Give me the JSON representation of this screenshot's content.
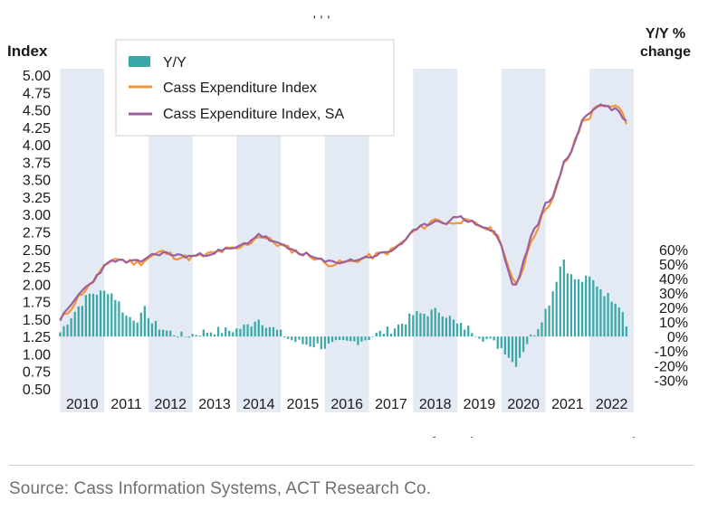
{
  "chart_data": {
    "type": "bar+line",
    "title_fragment": ", , ,",
    "left_axis": {
      "label": "Index",
      "ticks": [
        "5.00",
        "4.75",
        "4.50",
        "4.25",
        "4.00",
        "3.75",
        "3.50",
        "3.25",
        "3.00",
        "2.75",
        "2.50",
        "2.25",
        "2.00",
        "1.75",
        "1.50",
        "1.25",
        "1.00",
        "0.75",
        "0.50"
      ],
      "range": [
        0.5,
        5.0
      ]
    },
    "right_axis": {
      "label_line1": "Y/Y %",
      "label_line2": "change",
      "ticks": [
        "60%",
        "50%",
        "40%",
        "30%",
        "20%",
        "10%",
        "0%",
        "-10%",
        "-20%",
        "-30%"
      ],
      "range": [
        -30,
        60
      ]
    },
    "years": [
      "2010",
      "2011",
      "2012",
      "2013",
      "2014",
      "2015",
      "2016",
      "2017",
      "2018",
      "2019",
      "2020",
      "2021",
      "2022"
    ],
    "x_range": [
      2009.95,
      2023.0
    ],
    "shaded_years": [
      "2010",
      "2012",
      "2014",
      "2016",
      "2018",
      "2020",
      "2022"
    ],
    "legend": [
      "Y/Y",
      "Cass Expenditure Index",
      "Cass Expenditure Index, SA"
    ],
    "colors": {
      "yy": "#3aa8a6",
      "index": "#f2963a",
      "sa": "#9b5f9e",
      "shade": "#e3eaf4",
      "text": "#1a1a1a"
    },
    "index_keypoints": [
      [
        2010.0,
        1.48
      ],
      [
        2010.2,
        1.62
      ],
      [
        2010.45,
        1.85
      ],
      [
        2010.7,
        2.0
      ],
      [
        2010.95,
        2.2
      ],
      [
        2011.2,
        2.38
      ],
      [
        2011.5,
        2.33
      ],
      [
        2011.8,
        2.3
      ],
      [
        2012.0,
        2.38
      ],
      [
        2012.3,
        2.47
      ],
      [
        2012.6,
        2.4
      ],
      [
        2012.9,
        2.38
      ],
      [
        2013.2,
        2.4
      ],
      [
        2013.5,
        2.45
      ],
      [
        2013.8,
        2.5
      ],
      [
        2014.0,
        2.5
      ],
      [
        2014.3,
        2.6
      ],
      [
        2014.5,
        2.7
      ],
      [
        2014.8,
        2.62
      ],
      [
        2015.0,
        2.55
      ],
      [
        2015.3,
        2.48
      ],
      [
        2015.6,
        2.42
      ],
      [
        2015.8,
        2.38
      ],
      [
        2016.0,
        2.3
      ],
      [
        2016.3,
        2.3
      ],
      [
        2016.6,
        2.32
      ],
      [
        2016.9,
        2.38
      ],
      [
        2017.2,
        2.42
      ],
      [
        2017.5,
        2.48
      ],
      [
        2017.8,
        2.62
      ],
      [
        2018.0,
        2.75
      ],
      [
        2018.3,
        2.85
      ],
      [
        2018.55,
        2.95
      ],
      [
        2018.8,
        2.85
      ],
      [
        2019.0,
        2.92
      ],
      [
        2019.3,
        2.88
      ],
      [
        2019.6,
        2.82
      ],
      [
        2019.85,
        2.75
      ],
      [
        2020.0,
        2.6
      ],
      [
        2020.15,
        2.25
      ],
      [
        2020.3,
        1.95
      ],
      [
        2020.45,
        2.15
      ],
      [
        2020.65,
        2.6
      ],
      [
        2020.85,
        2.85
      ],
      [
        2021.0,
        3.1
      ],
      [
        2021.2,
        3.25
      ],
      [
        2021.4,
        3.7
      ],
      [
        2021.55,
        3.85
      ],
      [
        2021.7,
        4.1
      ],
      [
        2021.85,
        4.35
      ],
      [
        2022.0,
        4.4
      ],
      [
        2022.15,
        4.55
      ],
      [
        2022.3,
        4.6
      ],
      [
        2022.45,
        4.5
      ],
      [
        2022.6,
        4.55
      ],
      [
        2022.75,
        4.45
      ],
      [
        2022.88,
        4.25
      ]
    ],
    "sa_keypoints": [
      [
        2010.0,
        1.5
      ],
      [
        2010.2,
        1.65
      ],
      [
        2010.45,
        1.88
      ],
      [
        2010.7,
        2.02
      ],
      [
        2010.95,
        2.22
      ],
      [
        2011.2,
        2.35
      ],
      [
        2011.5,
        2.32
      ],
      [
        2011.8,
        2.32
      ],
      [
        2012.0,
        2.4
      ],
      [
        2012.3,
        2.45
      ],
      [
        2012.6,
        2.42
      ],
      [
        2012.9,
        2.4
      ],
      [
        2013.2,
        2.42
      ],
      [
        2013.5,
        2.46
      ],
      [
        2013.8,
        2.5
      ],
      [
        2014.0,
        2.52
      ],
      [
        2014.3,
        2.62
      ],
      [
        2014.5,
        2.72
      ],
      [
        2014.8,
        2.62
      ],
      [
        2015.0,
        2.56
      ],
      [
        2015.3,
        2.48
      ],
      [
        2015.6,
        2.42
      ],
      [
        2015.8,
        2.37
      ],
      [
        2016.0,
        2.32
      ],
      [
        2016.3,
        2.32
      ],
      [
        2016.6,
        2.34
      ],
      [
        2016.9,
        2.38
      ],
      [
        2017.2,
        2.42
      ],
      [
        2017.5,
        2.48
      ],
      [
        2017.8,
        2.62
      ],
      [
        2018.0,
        2.75
      ],
      [
        2018.3,
        2.86
      ],
      [
        2018.55,
        2.92
      ],
      [
        2018.8,
        2.88
      ],
      [
        2019.0,
        2.98
      ],
      [
        2019.3,
        2.9
      ],
      [
        2019.6,
        2.82
      ],
      [
        2019.85,
        2.74
      ],
      [
        2020.0,
        2.55
      ],
      [
        2020.15,
        2.2
      ],
      [
        2020.3,
        1.92
      ],
      [
        2020.45,
        2.2
      ],
      [
        2020.65,
        2.65
      ],
      [
        2020.85,
        2.9
      ],
      [
        2021.0,
        3.15
      ],
      [
        2021.2,
        3.3
      ],
      [
        2021.4,
        3.72
      ],
      [
        2021.55,
        3.85
      ],
      [
        2021.7,
        4.12
      ],
      [
        2021.85,
        4.38
      ],
      [
        2022.0,
        4.45
      ],
      [
        2022.15,
        4.55
      ],
      [
        2022.3,
        4.58
      ],
      [
        2022.45,
        4.52
      ],
      [
        2022.6,
        4.52
      ],
      [
        2022.75,
        4.4
      ],
      [
        2022.88,
        4.28
      ]
    ],
    "yy_keypoints": [
      [
        2010.0,
        3
      ],
      [
        2010.2,
        12
      ],
      [
        2010.45,
        22
      ],
      [
        2010.7,
        30
      ],
      [
        2010.95,
        30
      ],
      [
        2011.1,
        32
      ],
      [
        2011.3,
        25
      ],
      [
        2011.5,
        14
      ],
      [
        2011.8,
        12
      ],
      [
        2011.95,
        20
      ],
      [
        2012.05,
        10
      ],
      [
        2012.4,
        4
      ],
      [
        2012.8,
        0
      ],
      [
        2013.2,
        3
      ],
      [
        2013.5,
        4
      ],
      [
        2013.8,
        4
      ],
      [
        2014.0,
        5
      ],
      [
        2014.3,
        8
      ],
      [
        2014.45,
        13
      ],
      [
        2014.7,
        8
      ],
      [
        2014.95,
        3
      ],
      [
        2015.2,
        -2
      ],
      [
        2015.5,
        -5
      ],
      [
        2015.8,
        -6
      ],
      [
        2016.0,
        -7
      ],
      [
        2016.3,
        -5
      ],
      [
        2016.6,
        -4
      ],
      [
        2016.9,
        -2
      ],
      [
        2017.2,
        2
      ],
      [
        2017.5,
        5
      ],
      [
        2017.8,
        10
      ],
      [
        2018.0,
        15
      ],
      [
        2018.3,
        16
      ],
      [
        2018.6,
        18
      ],
      [
        2018.8,
        14
      ],
      [
        2019.0,
        8
      ],
      [
        2019.3,
        5
      ],
      [
        2019.6,
        -1
      ],
      [
        2019.85,
        -5
      ],
      [
        2020.1,
        -10
      ],
      [
        2020.3,
        -20
      ],
      [
        2020.45,
        -12
      ],
      [
        2020.6,
        -3
      ],
      [
        2020.8,
        5
      ],
      [
        2020.95,
        15
      ],
      [
        2021.1,
        25
      ],
      [
        2021.25,
        40
      ],
      [
        2021.4,
        55
      ],
      [
        2021.55,
        42
      ],
      [
        2021.75,
        38
      ],
      [
        2022.0,
        40
      ],
      [
        2022.2,
        35
      ],
      [
        2022.4,
        28
      ],
      [
        2022.6,
        25
      ],
      [
        2022.75,
        18
      ],
      [
        2022.88,
        5
      ],
      [
        2022.96,
        -4
      ]
    ]
  },
  "caption": "Source: Cass Information Systems, ACT Research Co.",
  "cut_off_source": "Source: Cass Information Systems, ACT Research Co."
}
